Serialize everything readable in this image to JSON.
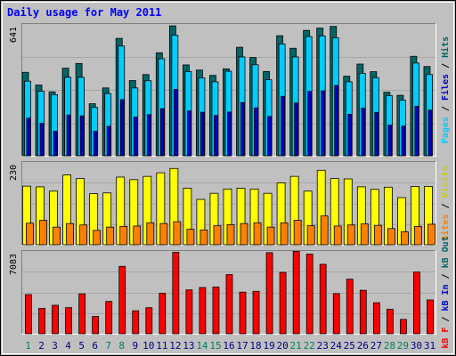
{
  "chart_data": {
    "type": "bar",
    "title": "Daily usage for May 2011",
    "categories": [
      "1",
      "2",
      "3",
      "4",
      "5",
      "6",
      "7",
      "8",
      "9",
      "10",
      "11",
      "12",
      "13",
      "14",
      "15",
      "16",
      "17",
      "18",
      "19",
      "20",
      "21",
      "22",
      "23",
      "24",
      "25",
      "26",
      "27",
      "28",
      "29",
      "30",
      "31"
    ],
    "weekend_days": [
      "1",
      "7",
      "8",
      "14",
      "15",
      "21",
      "22",
      "28",
      "29"
    ],
    "panels": [
      {
        "label_max": "641",
        "ylim": [
          0,
          641
        ],
        "right_labels": [
          "Pages",
          "Files",
          "Hits"
        ],
        "series": [
          {
            "name": "Hits",
            "color": "#006666",
            "values": [
              406,
              344,
              311,
              426,
              449,
              253,
              330,
              571,
              366,
              395,
              501,
              632,
              442,
              417,
              391,
              423,
              528,
              478,
              410,
              584,
              523,
              610,
              621,
              629,
              387,
              446,
              409,
              309,
              294,
              484,
              434
            ]
          },
          {
            "name": "Files",
            "color": "#00CCFF",
            "values": [
              363,
              314,
              297,
              382,
              382,
              235,
              303,
              534,
              330,
              365,
              472,
              586,
              410,
              379,
              360,
              411,
              481,
              443,
              370,
              544,
              481,
              580,
              583,
              574,
              360,
              401,
              380,
              293,
              270,
              451,
              395
            ]
          },
          {
            "name": "Pages",
            "color": "#0000CC",
            "values": [
              183,
              158,
              119,
              198,
              194,
              119,
              143,
              273,
              188,
              200,
              229,
              323,
              218,
              212,
              196,
              213,
              259,
              233,
              191,
              289,
              257,
              313,
              316,
              342,
              202,
              232,
              210,
              149,
              144,
              241,
              222
            ]
          }
        ]
      },
      {
        "label_max": "230",
        "ylim": [
          0,
          230
        ],
        "right_labels": [
          "Sites",
          "Visits"
        ],
        "series": [
          {
            "name": "Visits",
            "color": "#FFFF00",
            "values": [
              163,
              161,
              149,
              194,
              184,
              142,
              144,
              188,
              181,
              190,
              200,
              212,
              157,
              126,
              143,
              155,
              157,
              155,
              143,
              172,
              190,
              149,
              207,
              184,
              183,
              161,
              154,
              160,
              131,
              162,
              162
            ]
          },
          {
            "name": "Sites",
            "color": "#FF8000",
            "values": [
              60,
              68,
              49,
              59,
              55,
              40,
              49,
              51,
              52,
              61,
              59,
              64,
              43,
              41,
              53,
              56,
              59,
              61,
              49,
              61,
              68,
              53,
              80,
              52,
              55,
              58,
              54,
              45,
              36,
              51,
              57
            ]
          }
        ]
      },
      {
        "label_max": "7083",
        "ylim": [
          0,
          7083
        ],
        "right_labels": [
          "kB F",
          "kB In",
          "kB Out"
        ],
        "series": [
          {
            "name": "kB F",
            "color": "#FF0000",
            "values": [
              3352,
              2173,
              2439,
              2233,
              3415,
              1480,
              2764,
              5766,
              1968,
              2230,
              3474,
              6976,
              3757,
              3953,
              3999,
              5060,
              3566,
              3636,
              6937,
              5252,
              7053,
              6812,
              5941,
              3434,
              4668,
              3721,
              2658,
              2094,
              1230,
              5278,
              2893
            ]
          }
        ]
      }
    ],
    "colors": {
      "frame_bg": "#C0C0C0",
      "title_color": "#0000FF",
      "weekday_label": "#000080",
      "weekend_label": "#00805C"
    }
  }
}
